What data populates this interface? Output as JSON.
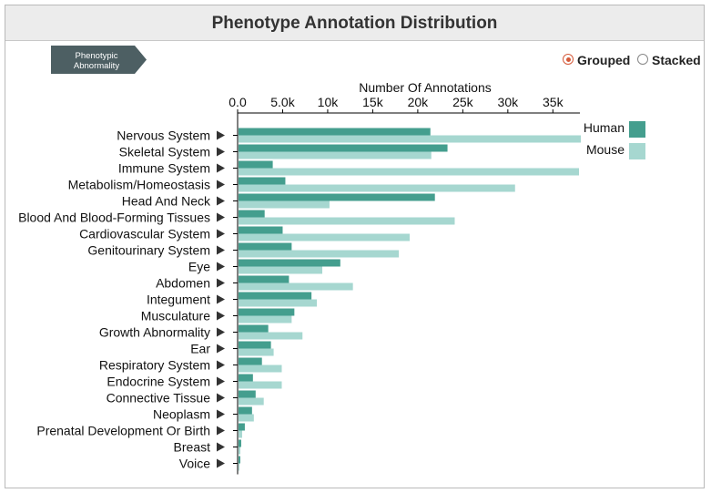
{
  "title": "Phenotype Annotation Distribution",
  "breadcrumb": {
    "label_line1": "Phenotypic",
    "label_line2": "Abnormality"
  },
  "view_modes": {
    "grouped": "Grouped",
    "stacked": "Stacked",
    "selected": "grouped"
  },
  "chart_data": {
    "type": "bar",
    "orientation": "horizontal",
    "xlabel": "Number Of Annotations",
    "xlim": [
      0,
      38000
    ],
    "x_ticks": [
      0,
      5000,
      10000,
      15000,
      20000,
      25000,
      30000,
      35000
    ],
    "x_tick_labels": [
      "0.0",
      "5.0k",
      "10k",
      "15k",
      "20k",
      "25k",
      "30k",
      "35k"
    ],
    "legend_position": "top-right",
    "categories": [
      "Nervous System",
      "Skeletal System",
      "Immune System",
      "Metabolism/Homeostasis",
      "Head And Neck",
      "Blood And Blood-Forming Tissues",
      "Cardiovascular System",
      "Genitourinary System",
      "Eye",
      "Abdomen",
      "Integument",
      "Musculature",
      "Growth Abnormality",
      "Ear",
      "Respiratory System",
      "Endocrine System",
      "Connective Tissue",
      "Neoplasm",
      "Prenatal Development Or Birth",
      "Breast",
      "Voice"
    ],
    "series": [
      {
        "name": "Human",
        "color": "#449e8e",
        "values": [
          21300,
          23200,
          3800,
          5200,
          21800,
          2900,
          4900,
          5900,
          11300,
          5600,
          8100,
          6200,
          3300,
          3600,
          2600,
          1600,
          1900,
          1500,
          700,
          300,
          200
        ]
      },
      {
        "name": "Mouse",
        "color": "#a6d7d0",
        "values": [
          38000,
          21400,
          37800,
          30700,
          10100,
          24000,
          19000,
          17800,
          9300,
          12700,
          8700,
          5900,
          7100,
          3900,
          4800,
          4800,
          2800,
          1700,
          400,
          200,
          100
        ]
      }
    ]
  }
}
